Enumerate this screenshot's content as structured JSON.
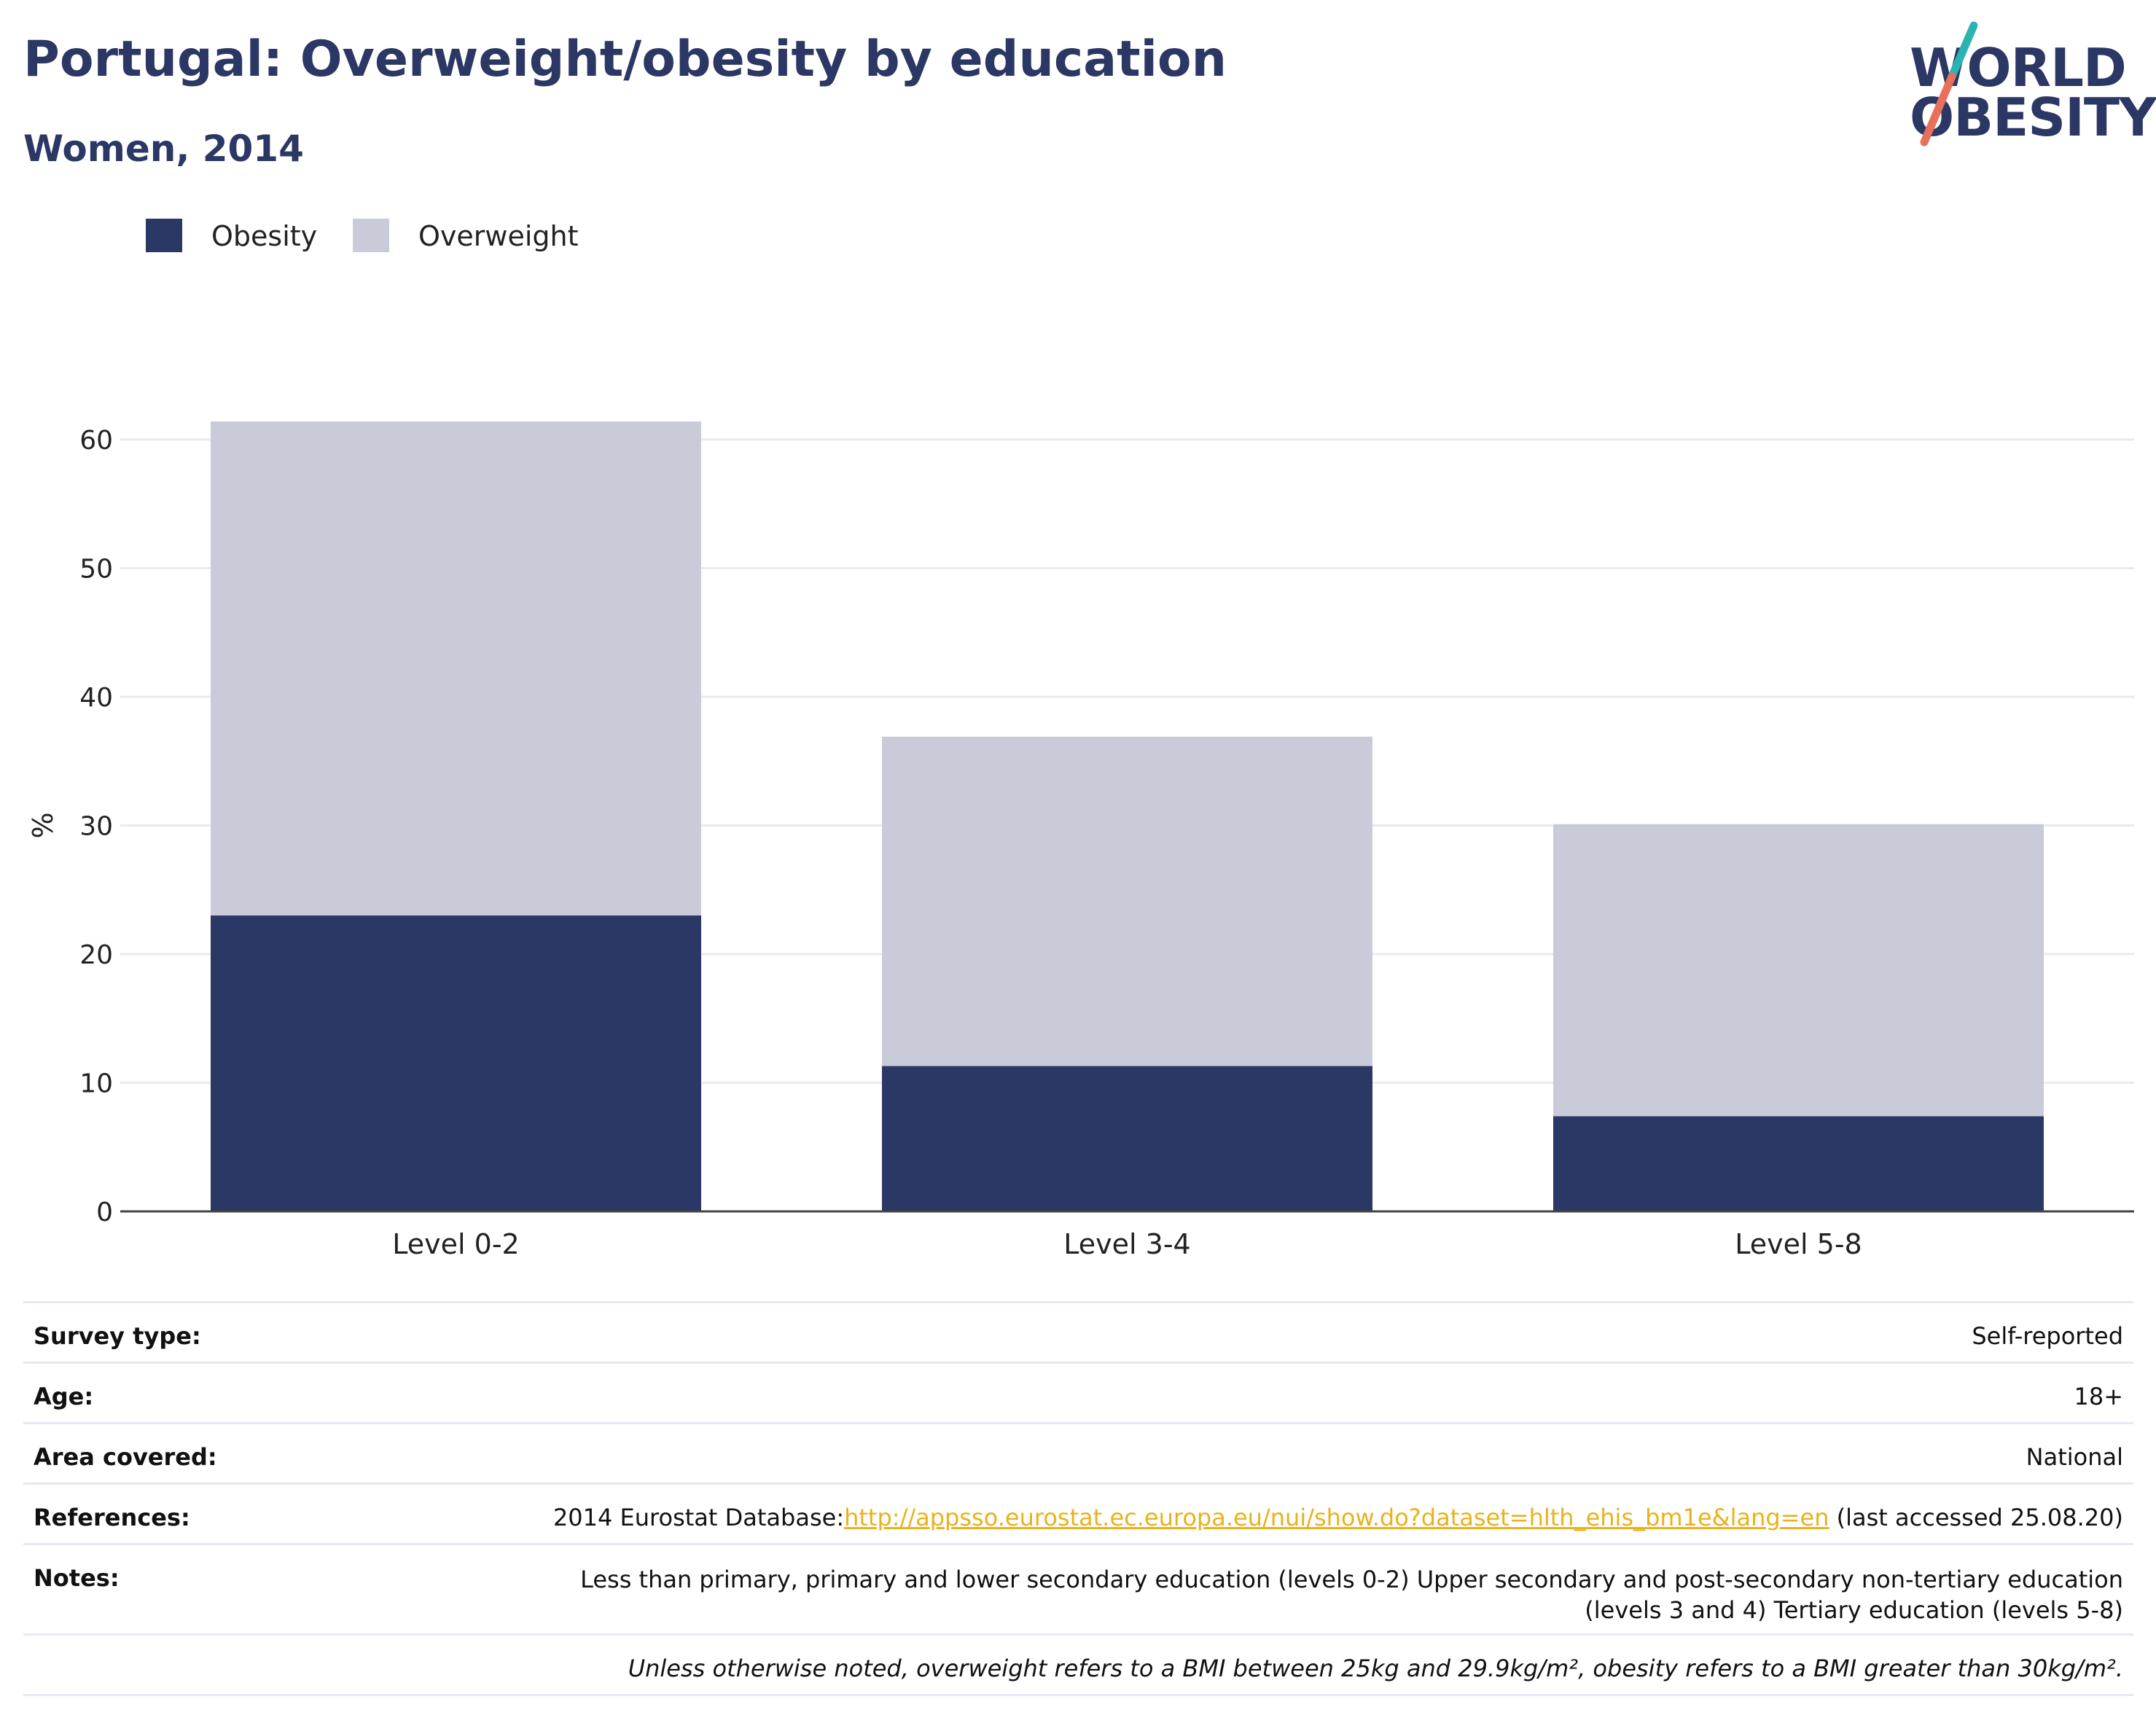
{
  "header": {
    "title": "Portugal: Overweight/obesity by education",
    "subtitle": "Women, 2014"
  },
  "logo": {
    "line1": "WORLD",
    "line2": "OBESITY",
    "colors": {
      "text": "#2b3764",
      "slash_top": "#2bb3b1",
      "slash_bottom": "#e8705a"
    }
  },
  "legend": [
    {
      "label": "Obesity",
      "color": "#2b3764"
    },
    {
      "label": "Overweight",
      "color": "#c9ccd8"
    }
  ],
  "chart_data": {
    "type": "bar",
    "stacked": true,
    "categories": [
      "Level 0-2",
      "Level 3-4",
      "Level 5-8"
    ],
    "series": [
      {
        "name": "Obesity",
        "values": [
          23.0,
          11.3,
          7.4
        ],
        "color": "#2b3764"
      },
      {
        "name": "Overweight",
        "values": [
          38.4,
          25.6,
          22.7
        ],
        "color": "#c9ccd8"
      }
    ],
    "title": "Portugal: Overweight/obesity by education",
    "subtitle": "Women, 2014",
    "xlabel": "",
    "ylabel": "%",
    "ylim": [
      0,
      63
    ],
    "yticks": [
      0,
      10,
      20,
      30,
      40,
      50,
      60
    ],
    "grid": true,
    "legend_position": "top-left"
  },
  "info": {
    "survey_type": {
      "label": "Survey type:",
      "value": "Self-reported"
    },
    "age": {
      "label": "Age:",
      "value": "18+"
    },
    "area": {
      "label": "Area covered:",
      "value": "National"
    },
    "references": {
      "label": "References:",
      "prefix": "2014 Eurostat Database:",
      "link": "http://appsso.eurostat.ec.europa.eu/nui/show.do?dataset=hlth_ehis_bm1e&lang=en",
      "suffix": " (last accessed 25.08.20)"
    },
    "notes": {
      "label": "Notes:",
      "line1": "Less than primary, primary and lower secondary education (levels 0-2) Upper secondary and post-secondary non-tertiary education",
      "line2": "(levels 3 and 4) Tertiary education (levels 5-8)"
    },
    "footnote": "Unless otherwise noted, overweight refers to a BMI between 25kg and 29.9kg/m², obesity refers to a BMI greater than 30kg/m²."
  }
}
